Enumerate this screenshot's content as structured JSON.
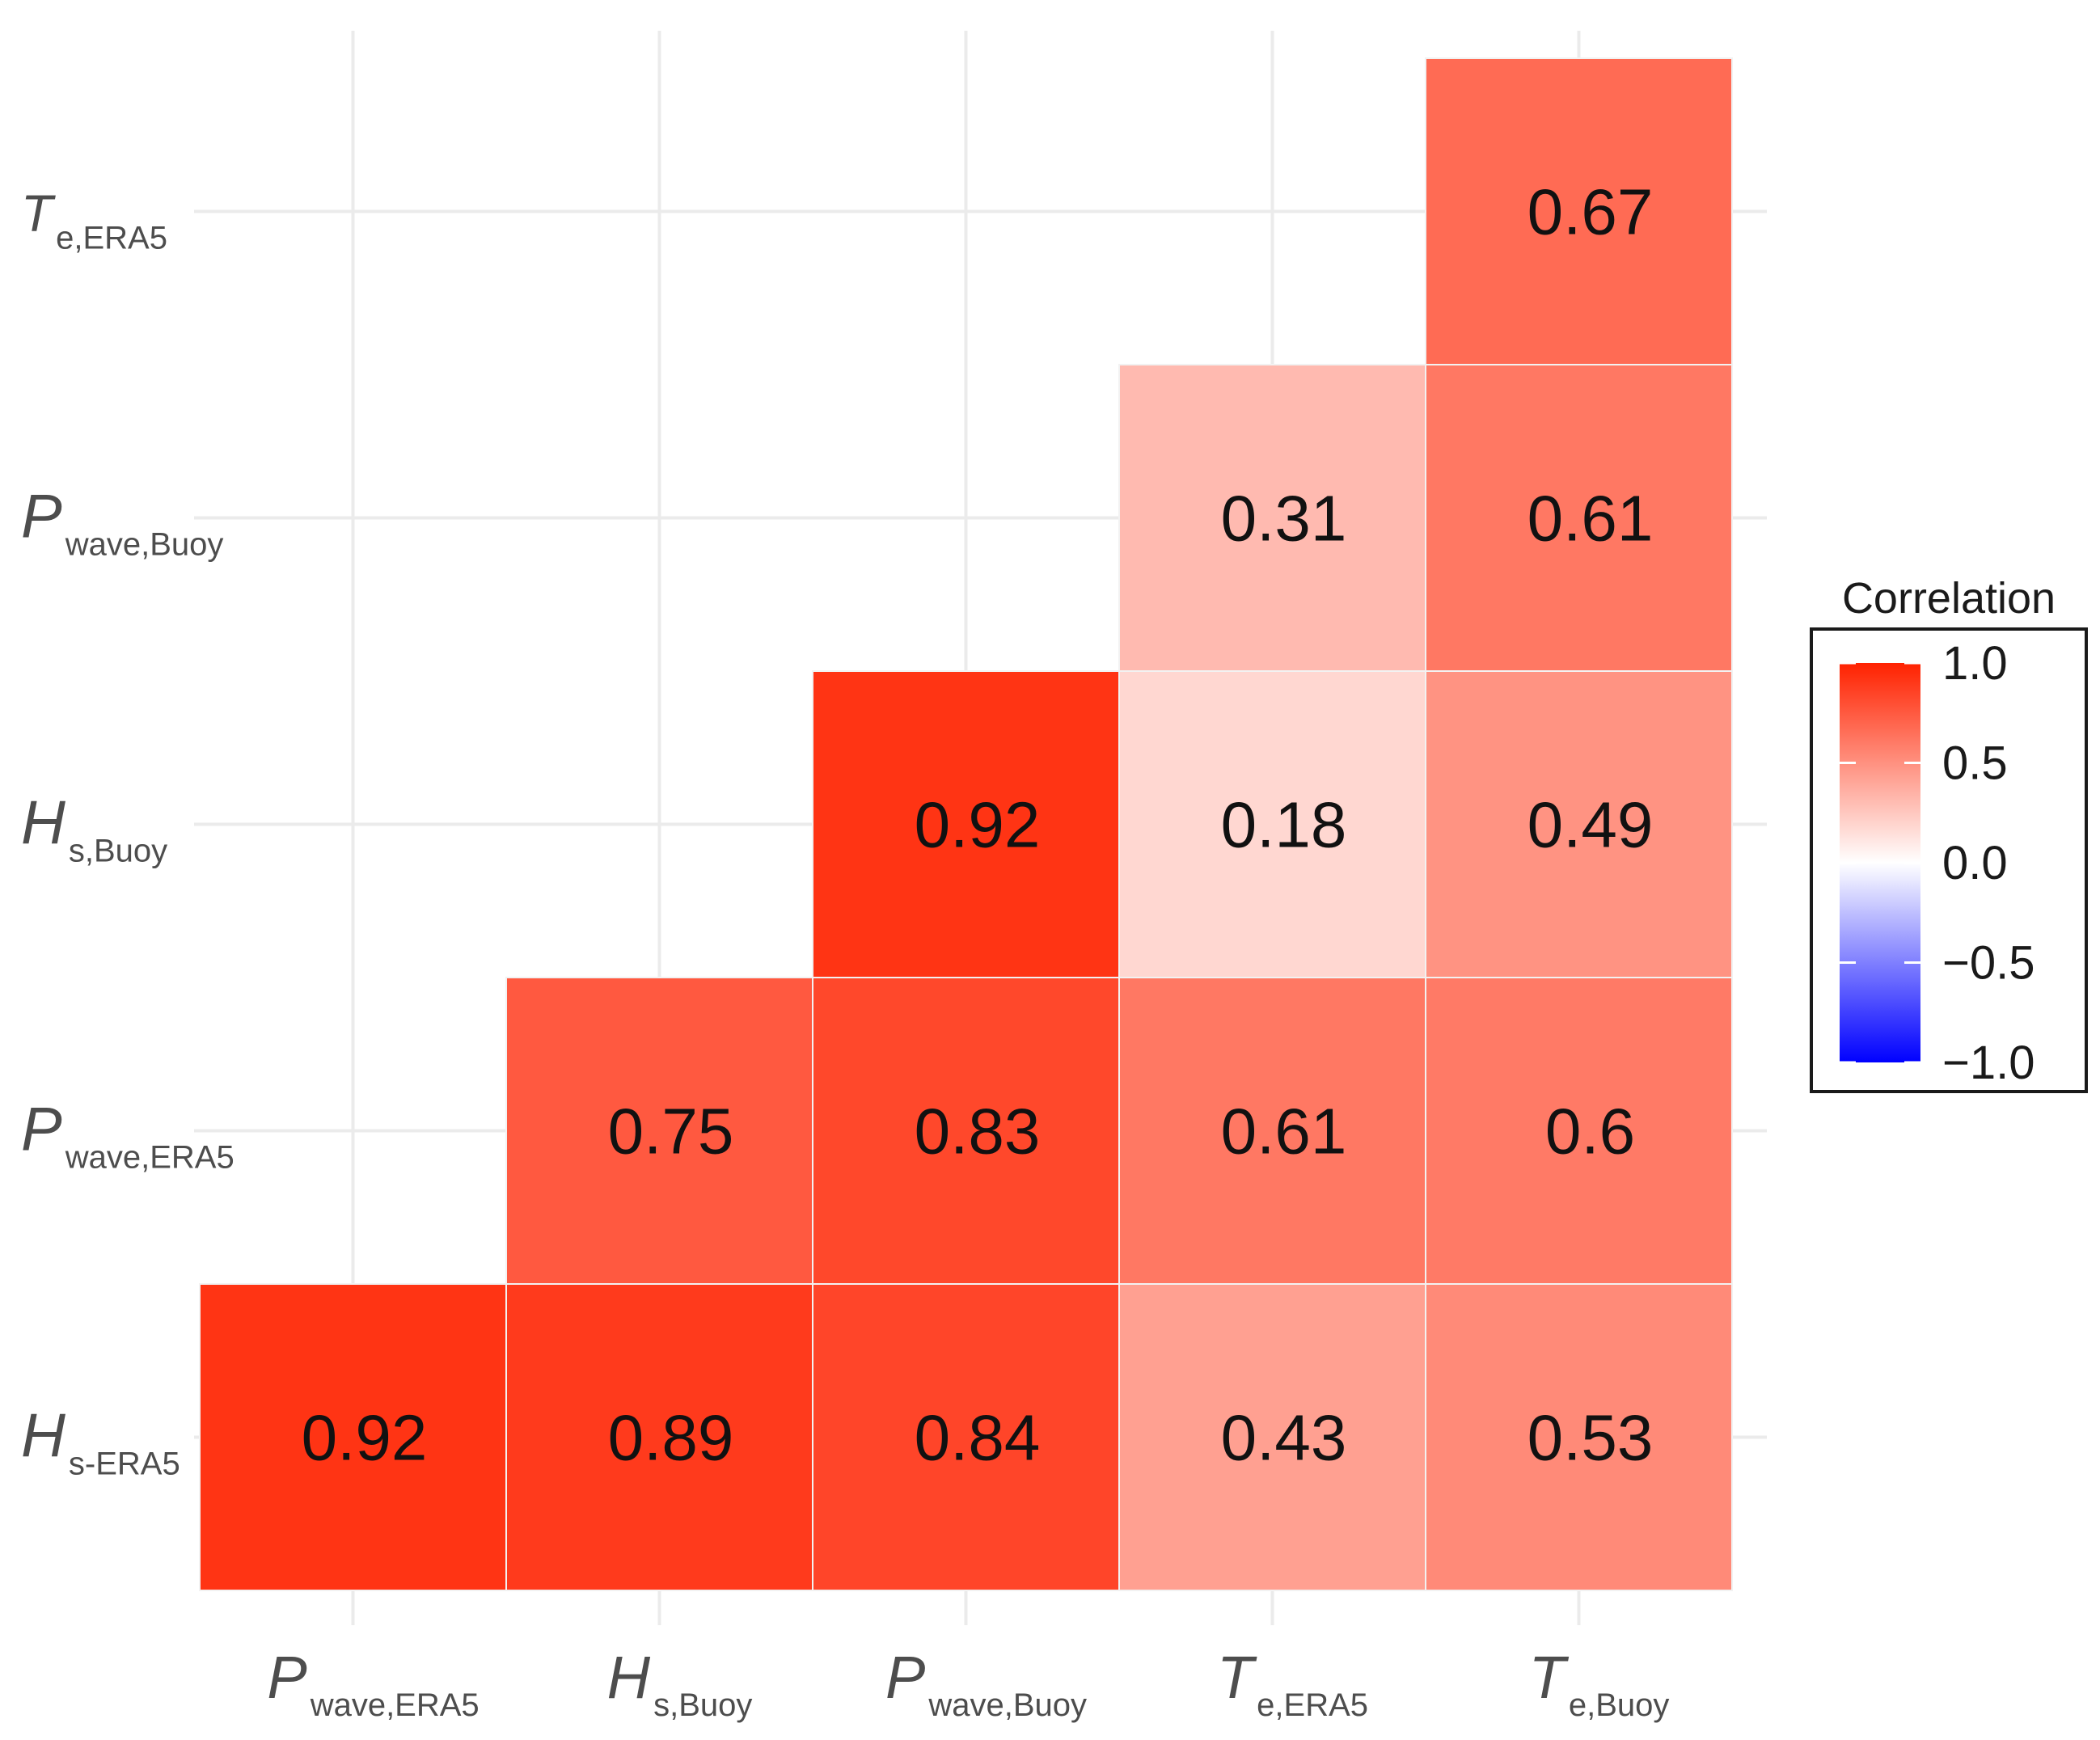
{
  "chart_data": {
    "type": "heatmap",
    "title": "",
    "xlabel": "",
    "ylabel": "",
    "x_categories": [
      {
        "main": "P",
        "sub": "wave,ERA5"
      },
      {
        "main": "H",
        "sub": "s,Buoy"
      },
      {
        "main": "P",
        "sub": "wave,Buoy"
      },
      {
        "main": "T",
        "sub": "e,ERA5"
      },
      {
        "main": "T",
        "sub": "e,Buoy"
      }
    ],
    "y_categories": [
      {
        "main": "H",
        "sub": "s-ERA5"
      },
      {
        "main": "P",
        "sub": "wave,ERA5"
      },
      {
        "main": "H",
        "sub": "s,Buoy"
      },
      {
        "main": "P",
        "sub": "wave,Buoy"
      },
      {
        "main": "T",
        "sub": "e,ERA5"
      }
    ],
    "cells": [
      {
        "x": 0,
        "y": 0,
        "value": 0.92,
        "label": "0.92"
      },
      {
        "x": 1,
        "y": 0,
        "value": 0.89,
        "label": "0.89"
      },
      {
        "x": 2,
        "y": 0,
        "value": 0.84,
        "label": "0.84"
      },
      {
        "x": 3,
        "y": 0,
        "value": 0.43,
        "label": "0.43"
      },
      {
        "x": 4,
        "y": 0,
        "value": 0.53,
        "label": "0.53"
      },
      {
        "x": 1,
        "y": 1,
        "value": 0.75,
        "label": "0.75"
      },
      {
        "x": 2,
        "y": 1,
        "value": 0.83,
        "label": "0.83"
      },
      {
        "x": 3,
        "y": 1,
        "value": 0.61,
        "label": "0.61"
      },
      {
        "x": 4,
        "y": 1,
        "value": 0.6,
        "label": "0.6"
      },
      {
        "x": 2,
        "y": 2,
        "value": 0.92,
        "label": "0.92"
      },
      {
        "x": 3,
        "y": 2,
        "value": 0.18,
        "label": "0.18"
      },
      {
        "x": 4,
        "y": 2,
        "value": 0.49,
        "label": "0.49"
      },
      {
        "x": 3,
        "y": 3,
        "value": 0.31,
        "label": "0.31"
      },
      {
        "x": 4,
        "y": 3,
        "value": 0.61,
        "label": "0.61"
      },
      {
        "x": 4,
        "y": 4,
        "value": 0.67,
        "label": "0.67"
      }
    ],
    "legend": {
      "title": "Correlation",
      "placement": "right",
      "range": [
        -1.0,
        1.0
      ],
      "ticks": [
        {
          "value": 1.0,
          "label": "1.0"
        },
        {
          "value": 0.5,
          "label": "0.5"
        },
        {
          "value": 0.0,
          "label": "0.0"
        },
        {
          "value": -0.5,
          "label": "−0.5"
        },
        {
          "value": -1.0,
          "label": "−1.0"
        }
      ]
    },
    "colors": {
      "low": "#0000ff",
      "mid": "#ffffff",
      "high": "#ff2200",
      "grid": "#ebebeb",
      "cell_border": "#f2f2f2"
    },
    "grid": true
  }
}
